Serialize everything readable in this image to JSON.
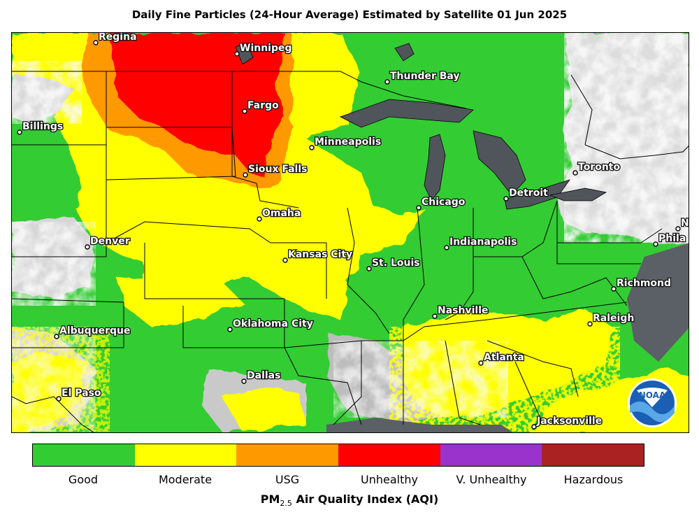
{
  "title": "Daily Fine Particles (24-Hour Average) Estimated by Satellite  01 Jun 2025",
  "cities": [
    {
      "name": "Regina",
      "dx": 4,
      "dy": -4
    },
    {
      "name": "Winnipeg",
      "dx": 4,
      "dy": -4
    },
    {
      "name": "Thunder Bay",
      "dx": 4,
      "dy": -4
    },
    {
      "name": "Fargo",
      "dx": 4,
      "dy": -4
    },
    {
      "name": "Billings",
      "dx": 4,
      "dy": -4
    },
    {
      "name": "Minneapolis",
      "dx": 4,
      "dy": -4
    },
    {
      "name": "Sioux Falls",
      "dx": 4,
      "dy": -4
    },
    {
      "name": "Toronto",
      "dx": 4,
      "dy": -4
    },
    {
      "name": "Detroit",
      "dx": 4,
      "dy": -4
    },
    {
      "name": "Chicago",
      "dx": 4,
      "dy": -4
    },
    {
      "name": "Omaha",
      "dx": 4,
      "dy": -4
    },
    {
      "name": "Denver",
      "dx": 4,
      "dy": -4
    },
    {
      "name": "Indianapolis",
      "dx": 4,
      "dy": -4
    },
    {
      "name": "Kansas City",
      "dx": 4,
      "dy": -4
    },
    {
      "name": "St. Louis",
      "dx": 4,
      "dy": -4
    },
    {
      "name": "Richmond",
      "dx": 4,
      "dy": -4
    },
    {
      "name": "Nashville",
      "dx": 4,
      "dy": -4
    },
    {
      "name": "Oklahoma City",
      "dx": 4,
      "dy": -4
    },
    {
      "name": "Raleigh",
      "dx": 4,
      "dy": -4
    },
    {
      "name": "Albuquerque",
      "dx": 4,
      "dy": -4
    },
    {
      "name": "Atlanta",
      "dx": 4,
      "dy": -4
    },
    {
      "name": "Dallas",
      "dx": 4,
      "dy": -4
    },
    {
      "name": "El Paso",
      "dx": 4,
      "dy": -4
    },
    {
      "name": "Jacksonville",
      "dx": 4,
      "dy": -4
    },
    {
      "name": "Phila",
      "dx": 4,
      "dy": -4
    },
    {
      "name": "N",
      "dx": 4,
      "dy": -4
    }
  ],
  "legend": {
    "items": [
      {
        "label": "Good",
        "color": "#33cc33"
      },
      {
        "label": "Moderate",
        "color": "#ffff00"
      },
      {
        "label": "USG",
        "color": "#ff9900"
      },
      {
        "label": "Unhealthy",
        "color": "#ff0000"
      },
      {
        "label": "V. Unhealthy",
        "color": "#9933cc"
      },
      {
        "label": "Hazardous",
        "color": "#aa2222"
      }
    ],
    "axis_title_main": "PM",
    "axis_title_sub": "2.5",
    "axis_title_rest": " Air Quality Index (AQI)"
  },
  "colors": {
    "good": "#33cc33",
    "moderate": "#ffff00",
    "usg": "#ff9900",
    "unhealthy": "#ff0000",
    "cloud": "#e4e4e4",
    "water": "#555a60"
  },
  "logo": {
    "name": "noaa-logo",
    "text": "NOAA"
  }
}
